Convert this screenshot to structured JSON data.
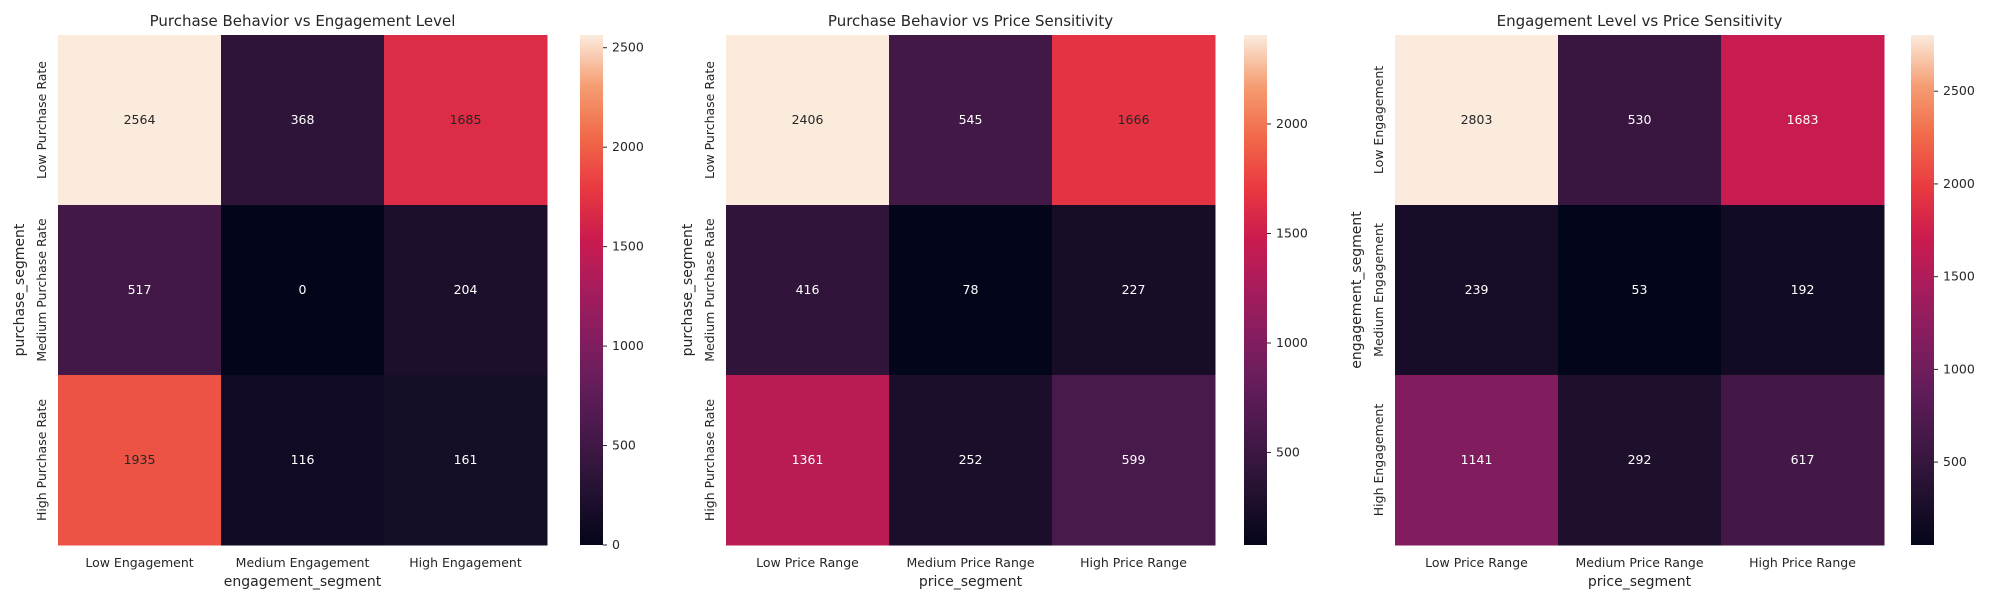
{
  "chart_data": [
    {
      "type": "heatmap",
      "title": "Purchase Behavior vs Engagement Level",
      "xlabel": "engagement_segment",
      "ylabel": "purchase_segment",
      "x_categories": [
        "Low Engagement",
        "Medium Engagement",
        "High Engagement"
      ],
      "y_categories": [
        "Low Purchase Rate",
        "Medium Purchase Rate",
        "High Purchase Rate"
      ],
      "values": [
        [
          2564,
          368,
          1685
        ],
        [
          517,
          0,
          204
        ],
        [
          1935,
          116,
          161
        ]
      ],
      "colorbar": {
        "min": 0,
        "max": 2564,
        "ticks": [
          0,
          500,
          1000,
          1500,
          2000,
          2500
        ]
      },
      "colormap": "rocket"
    },
    {
      "type": "heatmap",
      "title": "Purchase Behavior vs Price Sensitivity",
      "xlabel": "price_segment",
      "ylabel": "purchase_segment",
      "x_categories": [
        "Low Price Range",
        "Medium Price Range",
        "High Price Range"
      ],
      "y_categories": [
        "Low Purchase Rate",
        "Medium Purchase Rate",
        "High Purchase Rate"
      ],
      "values": [
        [
          2406,
          545,
          1666
        ],
        [
          416,
          78,
          227
        ],
        [
          1361,
          252,
          599
        ]
      ],
      "colorbar": {
        "min": 78,
        "max": 2406,
        "ticks": [
          500,
          1000,
          1500,
          2000
        ]
      },
      "colormap": "rocket"
    },
    {
      "type": "heatmap",
      "title": "Engagement Level vs Price Sensitivity",
      "xlabel": "price_segment",
      "ylabel": "engagement_segment",
      "x_categories": [
        "Low Price Range",
        "Medium Price Range",
        "High Price Range"
      ],
      "y_categories": [
        "Low Engagement",
        "Medium Engagement",
        "High Engagement"
      ],
      "values": [
        [
          2803,
          530,
          1683
        ],
        [
          239,
          53,
          192
        ],
        [
          1141,
          292,
          617
        ]
      ],
      "colorbar": {
        "min": 53,
        "max": 2803,
        "ticks": [
          500,
          1000,
          1500,
          2000,
          2500
        ]
      },
      "colormap": "rocket"
    }
  ]
}
